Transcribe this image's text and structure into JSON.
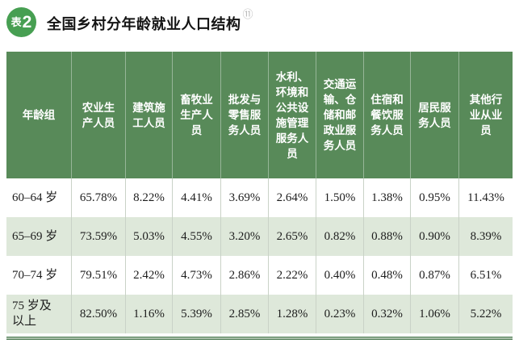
{
  "title": {
    "badge_prefix": "表",
    "badge_number": "2",
    "text": "全国乡村分年龄就业人口结构",
    "superscript": "⑪"
  },
  "colors": {
    "header_green": "#588a59",
    "badge_green": "#479f52",
    "row_alt_green": "#dee8da",
    "bottom_rule_green": "#4e7b54",
    "header_text": "#ffffff"
  },
  "table": {
    "header": [
      "年龄组",
      "农业生\n产人员",
      "建筑施\n工人员",
      "畜牧业\n生产人\n员",
      "批发与\n零售服\n务人员",
      "水利、\n环境和\n公共设\n施管理\n服务人\n员",
      "交通运\n输、仓\n储和邮\n政业服\n务人员",
      "住宿和\n餐饮服\n务人员",
      "居民服\n务人员",
      "其他行\n业从业\n员"
    ],
    "rows": [
      {
        "cells": [
          "60–64 岁",
          "65.78%",
          "8.22%",
          "4.41%",
          "3.69%",
          "2.64%",
          "1.50%",
          "1.38%",
          "0.95%",
          "11.43%"
        ]
      },
      {
        "cells": [
          "65–69 岁",
          "73.59%",
          "5.03%",
          "4.55%",
          "3.20%",
          "2.65%",
          "0.82%",
          "0.88%",
          "0.90%",
          "8.39%"
        ]
      },
      {
        "cells": [
          "70–74 岁",
          "79.51%",
          "2.42%",
          "4.73%",
          "2.86%",
          "2.22%",
          "0.40%",
          "0.48%",
          "0.87%",
          "6.51%"
        ]
      },
      {
        "cells": [
          "75 岁及\n以上",
          "82.50%",
          "1.16%",
          "5.39%",
          "2.85%",
          "1.28%",
          "0.23%",
          "0.32%",
          "1.06%",
          "5.22%"
        ]
      }
    ]
  },
  "chart_data": {
    "type": "table",
    "title": "全国乡村分年龄就业人口结构",
    "row_header": "年龄组",
    "columns": [
      "农业生产人员",
      "建筑施工人员",
      "畜牧业生产人员",
      "批发与零售服务人员",
      "水利、环境和公共设施管理服务人员",
      "交通运输、仓储和邮政业服务人员",
      "住宿和餐饮服务人员",
      "居民服务人员",
      "其他行业从业员"
    ],
    "rows": [
      {
        "label": "60–64 岁",
        "values_percent": [
          65.78,
          8.22,
          4.41,
          3.69,
          2.64,
          1.5,
          1.38,
          0.95,
          11.43
        ]
      },
      {
        "label": "65–69 岁",
        "values_percent": [
          73.59,
          5.03,
          4.55,
          3.2,
          2.65,
          0.82,
          0.88,
          0.9,
          8.39
        ]
      },
      {
        "label": "70–74 岁",
        "values_percent": [
          79.51,
          2.42,
          4.73,
          2.86,
          2.22,
          0.4,
          0.48,
          0.87,
          6.51
        ]
      },
      {
        "label": "75 岁及以上",
        "values_percent": [
          82.5,
          1.16,
          5.39,
          2.85,
          1.28,
          0.23,
          0.32,
          1.06,
          5.22
        ]
      }
    ]
  }
}
